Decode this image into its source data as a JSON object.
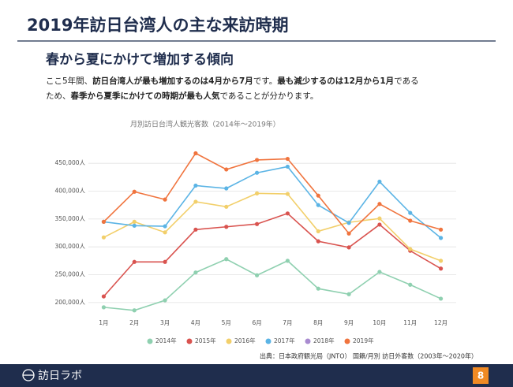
{
  "header": {
    "title": "2019年訪日台湾人の主な来訪時期",
    "subtitle": "春から夏にかけて増加する傾向"
  },
  "body": [
    [
      {
        "text": "ここ5年間、",
        "bold": false
      },
      {
        "text": "訪日台湾人が最も増加するのは4月から7月",
        "bold": true
      },
      {
        "text": "です。",
        "bold": false
      },
      {
        "text": "最も減少するのは12月から1月",
        "bold": true
      },
      {
        "text": "である",
        "bold": false
      }
    ],
    [
      {
        "text": "ため、",
        "bold": false
      },
      {
        "text": "春季から夏季にかけての時期が最も人気",
        "bold": true
      },
      {
        "text": "であることが分かります。",
        "bold": false
      }
    ]
  ],
  "chart_data": {
    "type": "line",
    "title": "月別訪日台湾人観光客数（2014年～2019年）",
    "categories": [
      "1月",
      "2月",
      "3月",
      "4月",
      "5月",
      "6月",
      "7月",
      "8月",
      "9月",
      "10月",
      "11月",
      "12月"
    ],
    "series": [
      {
        "name": "2014年",
        "color": "#8fd0b0",
        "values": [
          191500,
          186000,
          204000,
          254000,
          278000,
          249000,
          275000,
          225000,
          215000,
          255000,
          232000,
          207000
        ]
      },
      {
        "name": "2015年",
        "color": "#d9534f",
        "values": [
          211000,
          273000,
          273000,
          331000,
          336000,
          341000,
          360000,
          310000,
          299000,
          340000,
          293000,
          261000
        ]
      },
      {
        "name": "2016年",
        "color": "#f2cf6a",
        "values": [
          317000,
          345000,
          326000,
          381000,
          372000,
          396000,
          395000,
          328000,
          344000,
          351000,
          296000,
          275000
        ]
      },
      {
        "name": "2017年",
        "color": "#5bb4e5",
        "values": [
          345000,
          338000,
          337000,
          410000,
          405000,
          433000,
          444000,
          375000,
          343000,
          417000,
          361000,
          316000
        ]
      },
      {
        "name": "2018年",
        "color": "#a98bd0",
        "values": [
          null,
          null,
          null,
          null,
          null,
          null,
          null,
          null,
          null,
          null,
          null,
          null
        ]
      },
      {
        "name": "2019年",
        "color": "#f0743e",
        "values": [
          345000,
          399000,
          385000,
          468000,
          439000,
          456000,
          458000,
          392000,
          324000,
          377000,
          347000,
          331000
        ]
      }
    ],
    "ylim": [
      180000,
      480000
    ],
    "yticks": [
      {
        "value": 200000,
        "label": "200,000人"
      },
      {
        "value": 250000,
        "label": "250,000人"
      },
      {
        "value": 300000,
        "label": "300,000人"
      },
      {
        "value": 350000,
        "label": "350,000人"
      },
      {
        "value": 400000,
        "label": "400,000人"
      },
      {
        "value": 450000,
        "label": "450,000人"
      }
    ],
    "grid": true,
    "legend": "bottom",
    "source": "出典：日本政府観光局（JNTO） 国籍/月別 訪日外客数（2003年～2020年）"
  },
  "footer": {
    "brand": "訪日ラボ",
    "page": "8"
  }
}
